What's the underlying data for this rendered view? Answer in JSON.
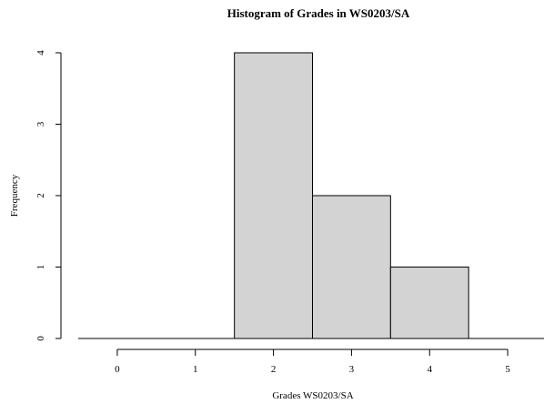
{
  "chart_data": {
    "type": "bar",
    "title": "Histogram of Grades in WS0203/SA",
    "xlabel": "Grades WS0203/SA",
    "ylabel": "Frequency",
    "bins": [
      {
        "start": 1.5,
        "end": 2.5,
        "count": 4
      },
      {
        "start": 2.5,
        "end": 3.5,
        "count": 2
      },
      {
        "start": 3.5,
        "end": 4.5,
        "count": 1
      }
    ],
    "baseline": {
      "start": -0.5,
      "end": 5.5
    },
    "xlim": [
      -0.5,
      5.5
    ],
    "ylim": [
      0,
      4
    ],
    "xticks": [
      "0",
      "1",
      "2",
      "3",
      "4",
      "5"
    ],
    "yticks": [
      "0",
      "1",
      "2",
      "3",
      "4"
    ],
    "grid": false,
    "legend": "none",
    "bar_color": "#d3d3d3"
  }
}
